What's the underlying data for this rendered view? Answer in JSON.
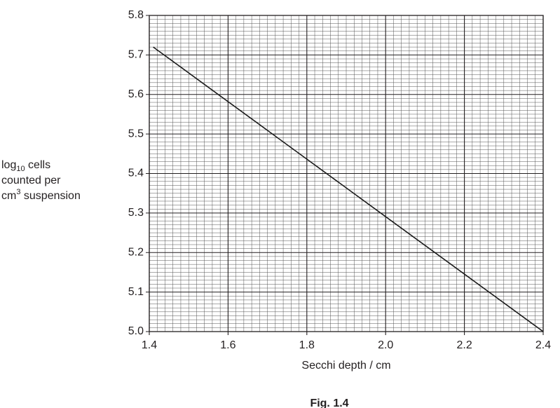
{
  "chart_data": {
    "type": "line",
    "ylabel_lines": [
      {
        "text": "log",
        "sub": "10",
        "rest": " cells"
      },
      {
        "text": "counted per"
      },
      {
        "text": "cm",
        "sup": "3",
        "rest": " suspension"
      }
    ],
    "xlabel": "Secchi depth / cm",
    "caption": "Fig. 1.4",
    "x": [
      1.41,
      2.4
    ],
    "series": [
      {
        "color": "#1a1a1a",
        "values": [
          5.72,
          5.0
        ]
      }
    ],
    "xlim": [
      1.4,
      2.4
    ],
    "ylim": [
      5.0,
      5.8
    ],
    "xticks": [
      1.4,
      1.6,
      1.8,
      {
        "value": 2,
        "label": "2.0"
      },
      2.2,
      2.4
    ],
    "yticks": [
      {
        "value": 5,
        "label": "5.0"
      },
      5.1,
      5.2,
      5.3,
      5.4,
      5.5,
      5.6,
      5.7,
      5.8
    ],
    "grid": true
  }
}
